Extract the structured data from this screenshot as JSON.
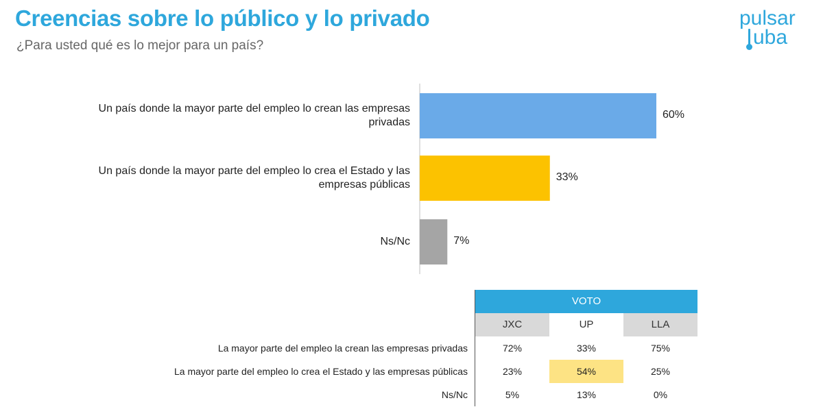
{
  "header": {
    "title": "Creencias sobre lo público y lo privado",
    "subtitle": "¿Para usted qué es lo mejor para un país?"
  },
  "logo": {
    "line1": "pulsar",
    "line2": "uba"
  },
  "chart_data": {
    "type": "bar",
    "orientation": "horizontal",
    "categories": [
      "Un país donde la mayor parte del empleo lo crean las empresas privadas",
      "Un país donde la mayor parte del empleo lo crea el Estado y las empresas públicas",
      "Ns/Nc"
    ],
    "values": [
      60,
      33,
      7
    ],
    "value_labels": [
      "60%",
      "33%",
      "7%"
    ],
    "colors": [
      "#6aaae8",
      "#fcc200",
      "#a5a5a5"
    ],
    "xlim": [
      0,
      100
    ],
    "grid": false
  },
  "table": {
    "group_header": "VOTO",
    "columns": [
      "JXC",
      "UP",
      "LLA"
    ],
    "rows": [
      {
        "label": "La mayor parte del empleo la crean las empresas privadas",
        "values": [
          "72%",
          "33%",
          "75%"
        ]
      },
      {
        "label": "La mayor parte del empleo lo crea el Estado y las empresas públicas",
        "values": [
          "23%",
          "54%",
          "25%"
        ]
      },
      {
        "label": "Ns/Nc",
        "values": [
          "5%",
          "13%",
          "0%"
        ]
      }
    ],
    "highlight_color": "#fde384",
    "header_color": "#2ea7dc",
    "column_header_color": "#d9d9d9"
  }
}
